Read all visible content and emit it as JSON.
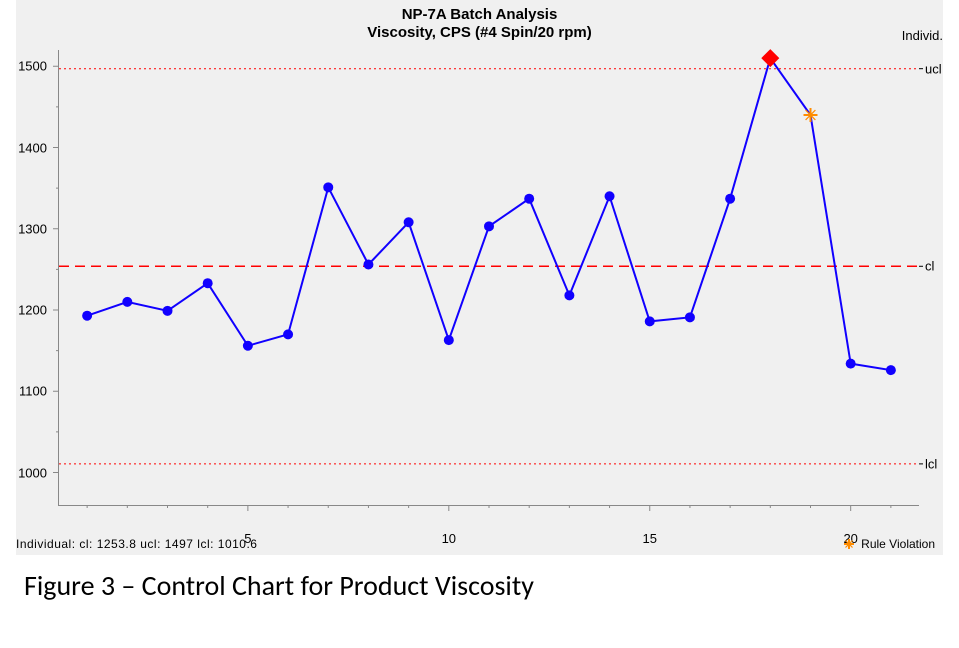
{
  "title_line1": "NP-7A Batch Analysis",
  "title_line2": "Viscosity, CPS (#4 Spin/20 rpm)",
  "corner_label": "Individ.",
  "caption": "Figure 3 – Control Chart for Product Viscosity",
  "stats_line": "Individual:   cl:   1253.8   ucl:   1497   lcl:   1010.6",
  "legend_label": "Rule Violation",
  "chart": {
    "type": "line",
    "background_color": "#f0f0f0",
    "plot_background": "#f0f0f0",
    "axis_color": "#888888",
    "y_min": 960,
    "y_max": 1520,
    "y_ticks": [
      1000,
      1100,
      1200,
      1300,
      1400,
      1500
    ],
    "y_tick_fontsize": 13,
    "x_min": 0.3,
    "x_max": 21.7,
    "x_ticks": [
      5,
      10,
      15,
      20
    ],
    "x_tick_fontsize": 13,
    "tick_len": 6,
    "tick_color": "#888888",
    "y_minor_step": 50,
    "x_minor_step": 1,
    "minor_tick_len": 3,
    "ucl": {
      "value": 1497,
      "label": "ucl",
      "color": "#ff0000",
      "dash": "2,3",
      "width": 1
    },
    "cl": {
      "value": 1253.8,
      "label": "cl",
      "color": "#ff0000",
      "dash": "10,6",
      "width": 1.5
    },
    "lcl": {
      "value": 1010.6,
      "label": "lcl",
      "color": "#ff0000",
      "dash": "2,3",
      "width": 1
    },
    "line_color": "#1100ff",
    "line_width": 2,
    "marker_color": "#1100ff",
    "marker_radius": 5,
    "violation_diamond_color": "#ff0000",
    "violation_diamond_size": 9,
    "rule_violation_marker_color": "#ff8c00",
    "rule_violation_marker_size": 7,
    "data": [
      {
        "x": 1,
        "y": 1193,
        "marker": "circle"
      },
      {
        "x": 2,
        "y": 1210,
        "marker": "circle"
      },
      {
        "x": 3,
        "y": 1199,
        "marker": "circle"
      },
      {
        "x": 4,
        "y": 1233,
        "marker": "circle"
      },
      {
        "x": 5,
        "y": 1156,
        "marker": "circle"
      },
      {
        "x": 6,
        "y": 1170,
        "marker": "circle"
      },
      {
        "x": 7,
        "y": 1351,
        "marker": "circle"
      },
      {
        "x": 8,
        "y": 1256,
        "marker": "circle"
      },
      {
        "x": 9,
        "y": 1308,
        "marker": "circle"
      },
      {
        "x": 10,
        "y": 1163,
        "marker": "circle"
      },
      {
        "x": 11,
        "y": 1303,
        "marker": "circle"
      },
      {
        "x": 12,
        "y": 1337,
        "marker": "circle"
      },
      {
        "x": 13,
        "y": 1218,
        "marker": "circle"
      },
      {
        "x": 14,
        "y": 1340,
        "marker": "circle"
      },
      {
        "x": 15,
        "y": 1186,
        "marker": "circle"
      },
      {
        "x": 16,
        "y": 1191,
        "marker": "circle"
      },
      {
        "x": 17,
        "y": 1337,
        "marker": "circle"
      },
      {
        "x": 18,
        "y": 1510,
        "marker": "diamond_red"
      },
      {
        "x": 19,
        "y": 1440,
        "marker": "cross_orange"
      },
      {
        "x": 20,
        "y": 1134,
        "marker": "circle"
      },
      {
        "x": 21,
        "y": 1126,
        "marker": "circle"
      }
    ]
  }
}
